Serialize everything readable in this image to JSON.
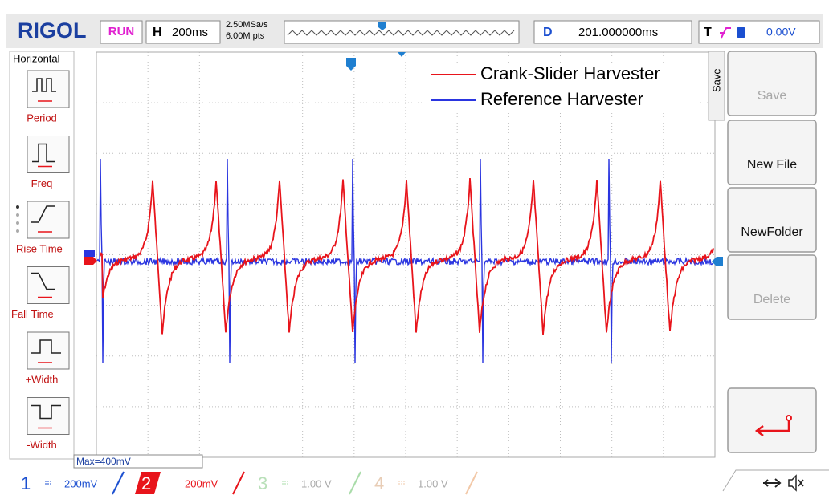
{
  "header": {
    "brand": "RIGOL",
    "status": "RUN",
    "timebase_label": "H",
    "timebase": "200ms",
    "sample_rate": "2.50MSa/s",
    "memory_depth": "6.00M pts",
    "delay_label": "D",
    "delay": "201.000000ms",
    "trigger_label": "T",
    "trigger_level": "0.00V"
  },
  "left_menu": {
    "title": "Horizontal",
    "items": [
      "Period",
      "Freq",
      "Rise Time",
      "Fall Time",
      "+Width",
      "-Width"
    ]
  },
  "right_menu": {
    "tab": "Save",
    "buttons": [
      "Save",
      "New File",
      "NewFolder",
      "Delete"
    ]
  },
  "legend": [
    {
      "name": "Crank-Slider Harvester",
      "color": "#e8141b"
    },
    {
      "name": "Reference Harvester",
      "color": "#2a35e0"
    }
  ],
  "measurement": "Max=400mV",
  "channels": [
    {
      "number": "1",
      "scale": "200mV"
    },
    {
      "number": "2",
      "scale": "200mV"
    },
    {
      "number": "3",
      "scale": "1.00 V"
    },
    {
      "number": "4",
      "scale": "1.00 V"
    }
  ]
}
